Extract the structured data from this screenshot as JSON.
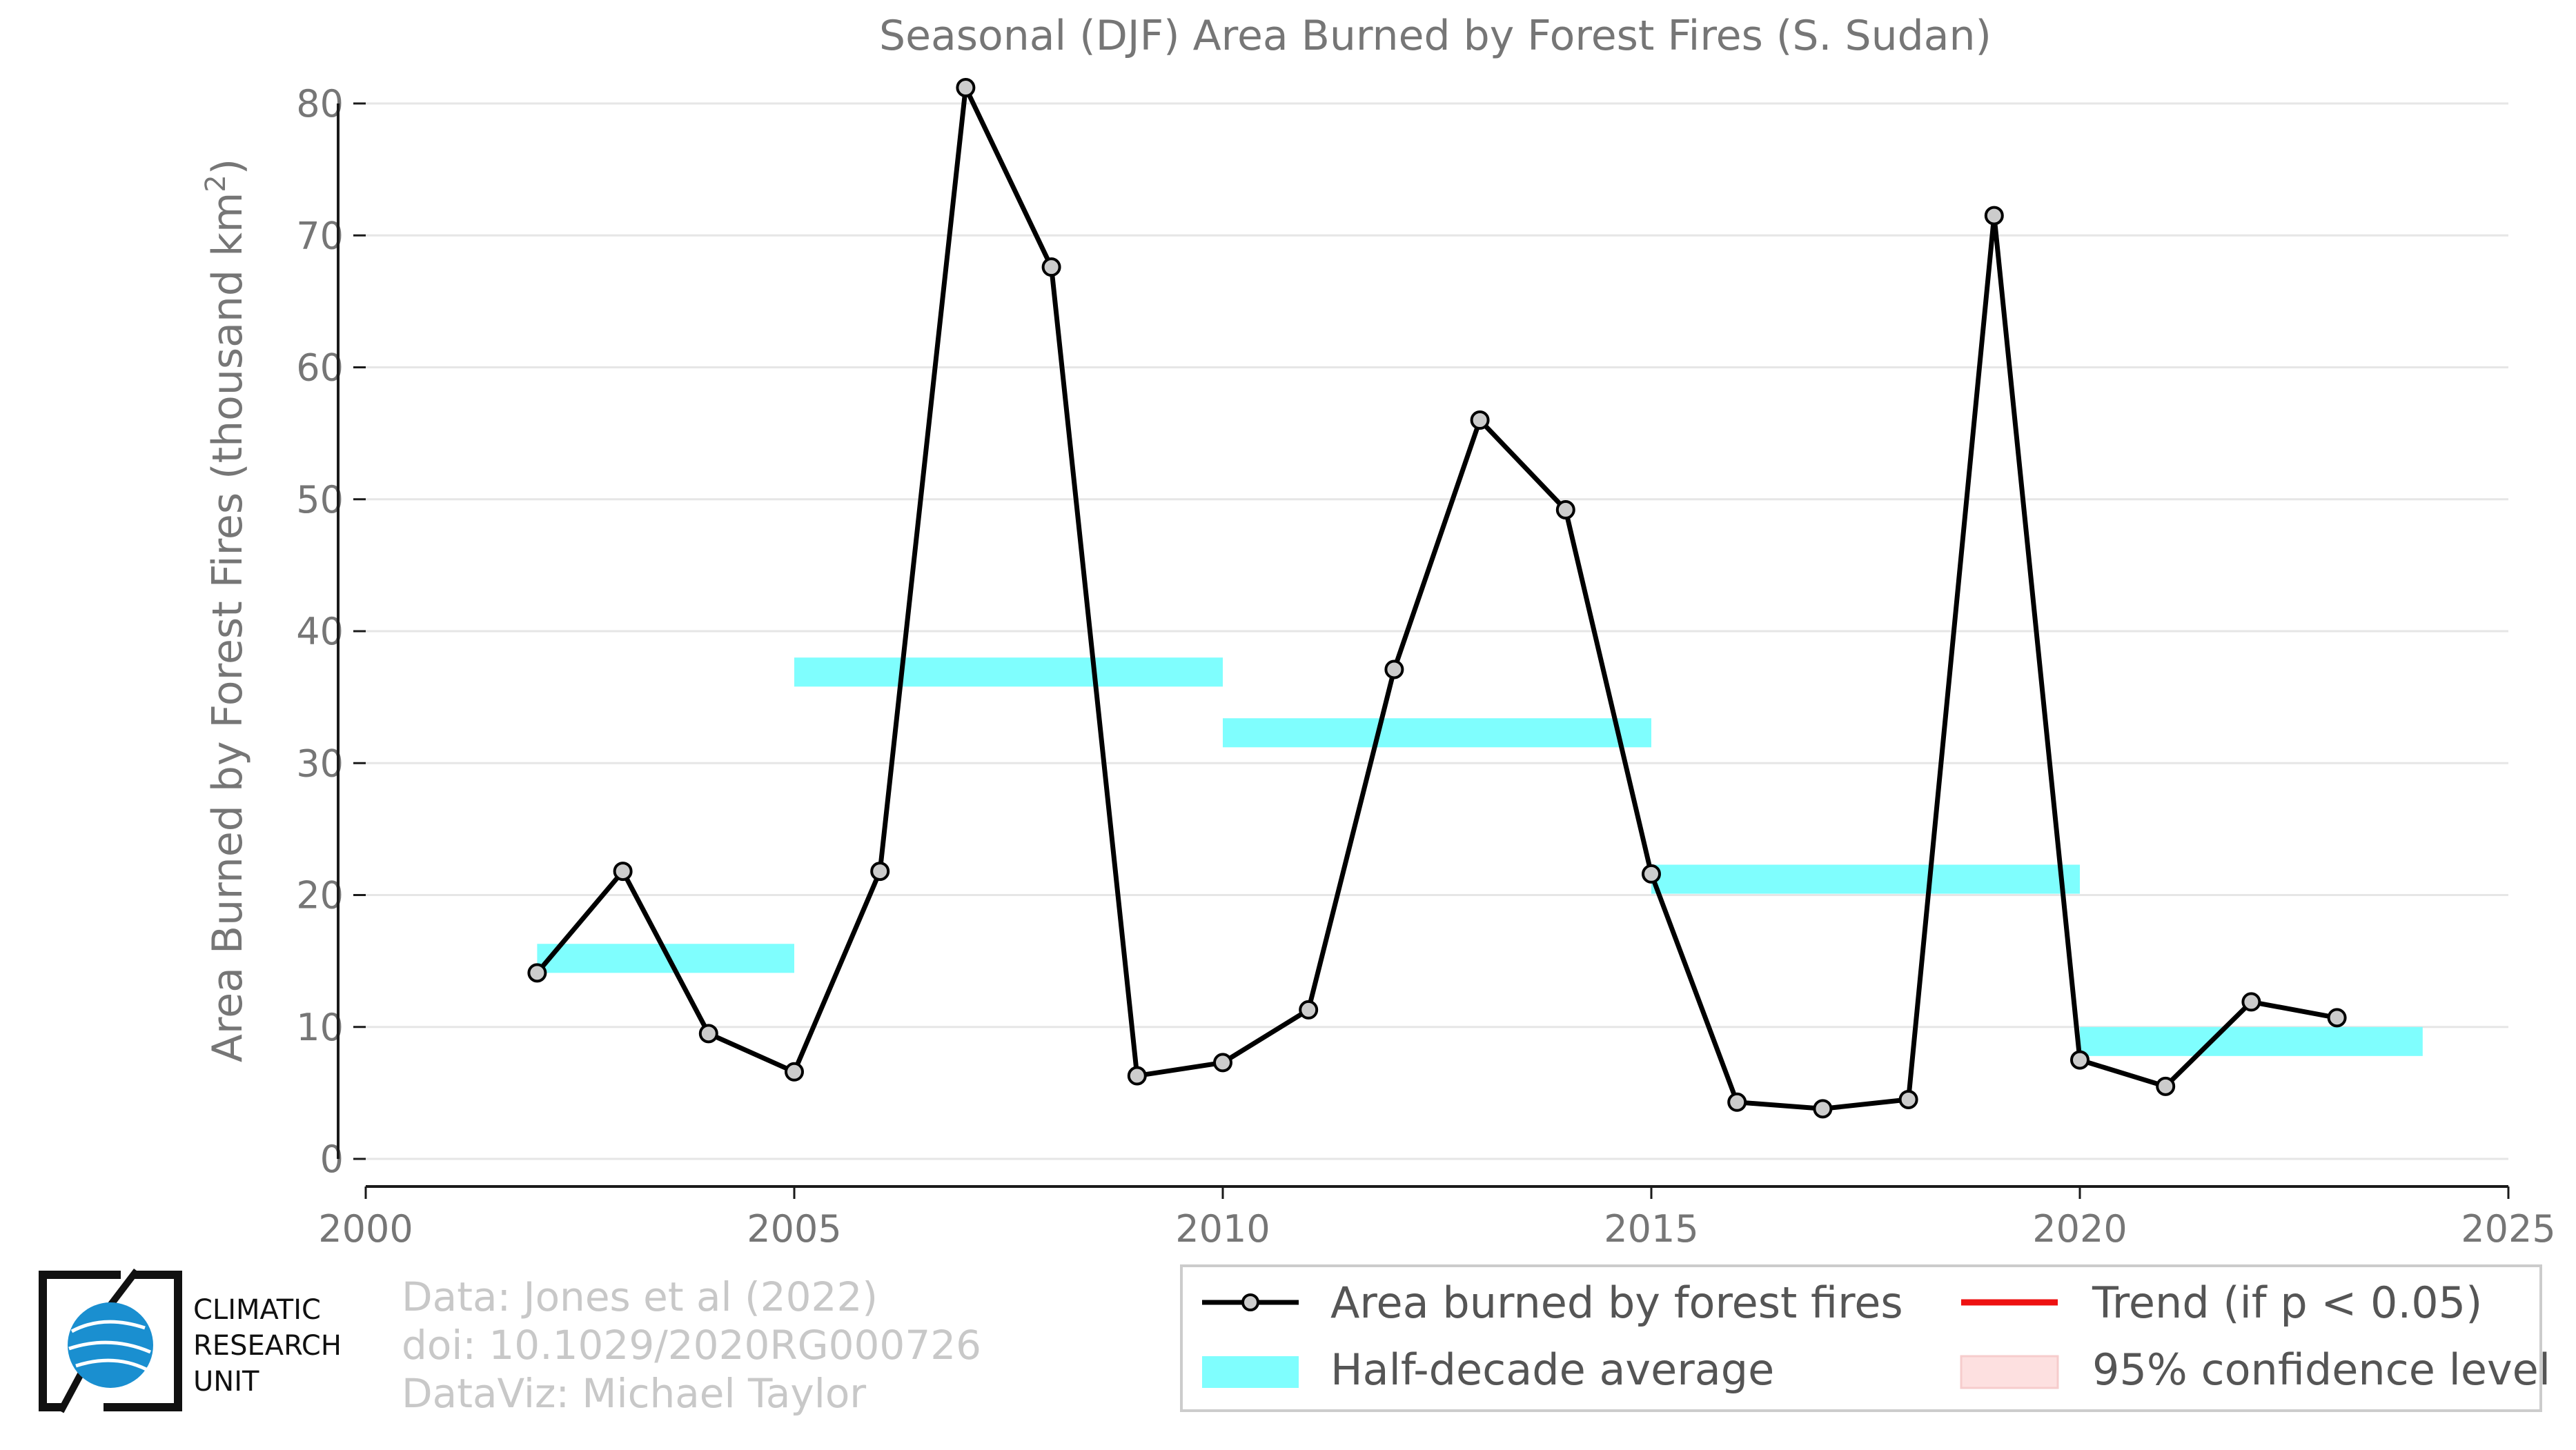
{
  "chart_data": {
    "type": "line",
    "title": "Seasonal (DJF) Area Burned by Forest Fires (S. Sudan)",
    "xlabel": "",
    "ylabel_main": "Area Burned by Forest Fires (thousand km",
    "ylabel_sup": "2",
    "ylabel_end": ")",
    "xlim": [
      2000,
      2025
    ],
    "ylim": [
      0,
      80
    ],
    "xticks": [
      2000,
      2005,
      2010,
      2015,
      2020,
      2025
    ],
    "yticks": [
      0,
      10,
      20,
      30,
      40,
      50,
      60,
      70,
      80
    ],
    "grid": true,
    "series": [
      {
        "name": "Area burned by forest fires",
        "color": "#000000",
        "marker_fill": "#cccccc",
        "x": [
          2002,
          2003,
          2004,
          2005,
          2006,
          2007,
          2008,
          2009,
          2010,
          2011,
          2012,
          2013,
          2014,
          2015,
          2016,
          2017,
          2018,
          2019,
          2020,
          2021,
          2022,
          2023
        ],
        "y": [
          14.1,
          21.8,
          9.5,
          6.6,
          21.8,
          81.2,
          67.6,
          6.3,
          7.3,
          11.3,
          37.1,
          56.0,
          49.2,
          21.6,
          4.3,
          3.8,
          4.5,
          71.5,
          7.5,
          5.5,
          11.9,
          10.7
        ]
      }
    ],
    "half_decade_average": {
      "name": "Half-decade average",
      "color": "#7ffefe",
      "segments": [
        {
          "x": [
            2002,
            2005
          ],
          "y": 15.2
        },
        {
          "x": [
            2005,
            2010
          ],
          "y": 36.9
        },
        {
          "x": [
            2010,
            2015
          ],
          "y": 32.3
        },
        {
          "x": [
            2015,
            2020
          ],
          "y": 21.2
        },
        {
          "x": [
            2020,
            2024
          ],
          "y": 8.9
        }
      ]
    },
    "legend": {
      "position": "bottom-right",
      "entries": [
        {
          "label": "Area burned by forest fires",
          "kind": "line-marker",
          "color": "#000000"
        },
        {
          "label": "Trend (if p < 0.05)",
          "kind": "line",
          "color": "#ee1111"
        },
        {
          "label": "Half-decade average",
          "kind": "band",
          "color": "#7ffefe"
        },
        {
          "label": "95% confidence level",
          "kind": "band",
          "color": "#fde0e0"
        }
      ]
    }
  },
  "credits": {
    "line1": "Data: Jones et al (2022)",
    "line2": "doi: 10.1029/2020RG000726",
    "line3": "DataViz: Michael Taylor"
  },
  "logo": {
    "line1": "CLIMATIC",
    "line2": "RESEARCH",
    "line3": "UNIT",
    "globe_color": "#1a8fd0"
  }
}
